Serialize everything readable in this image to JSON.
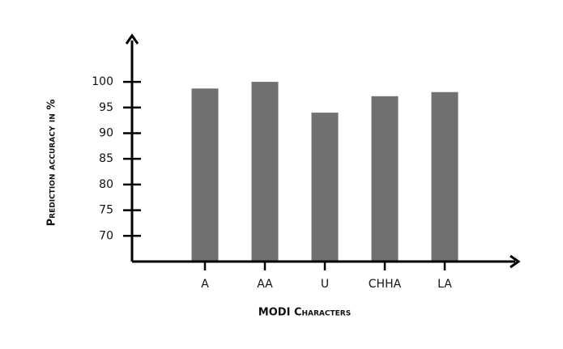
{
  "chart_data": {
    "type": "bar",
    "y_label": "Prediction accuracy in %",
    "x_label": "MODI Characters",
    "categories": [
      "A",
      "AA",
      "U",
      "CHHA",
      "LA"
    ],
    "values": [
      98.7,
      100,
      94,
      97.2,
      98
    ],
    "color": "#707070",
    "ylim": [
      65,
      109
    ],
    "yticks": [
      70,
      75,
      80,
      85,
      90,
      95,
      100
    ],
    "grid": false
  }
}
